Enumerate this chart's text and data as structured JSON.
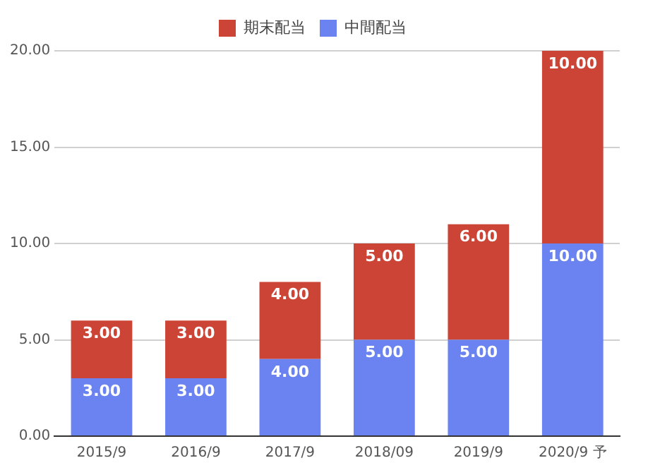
{
  "chart_data": {
    "type": "bar",
    "stacked": true,
    "categories": [
      "2015/9",
      "2016/9",
      "2017/9",
      "2018/09",
      "2019/9",
      "2020/9 予"
    ],
    "series": [
      {
        "name": "中間配当",
        "color": "#6b83f0",
        "values": [
          3,
          3,
          4,
          5,
          5,
          10
        ],
        "value_labels": [
          "3.00",
          "3.00",
          "4.00",
          "5.00",
          "5.00",
          "10.00"
        ]
      },
      {
        "name": "期末配当",
        "color": "#cc4436",
        "values": [
          3,
          3,
          4,
          5,
          6,
          10
        ],
        "value_labels": [
          "3.00",
          "3.00",
          "4.00",
          "5.00",
          "6.00",
          "10.00"
        ]
      }
    ],
    "ylim": [
      0,
      20
    ],
    "yticks": [
      {
        "value": 0,
        "label": "0.00"
      },
      {
        "value": 5,
        "label": "5.00"
      },
      {
        "value": 10,
        "label": "10.00"
      },
      {
        "value": 15,
        "label": "15.00"
      },
      {
        "value": 20,
        "label": "20.00"
      }
    ],
    "grid": "y",
    "legend": "top"
  }
}
